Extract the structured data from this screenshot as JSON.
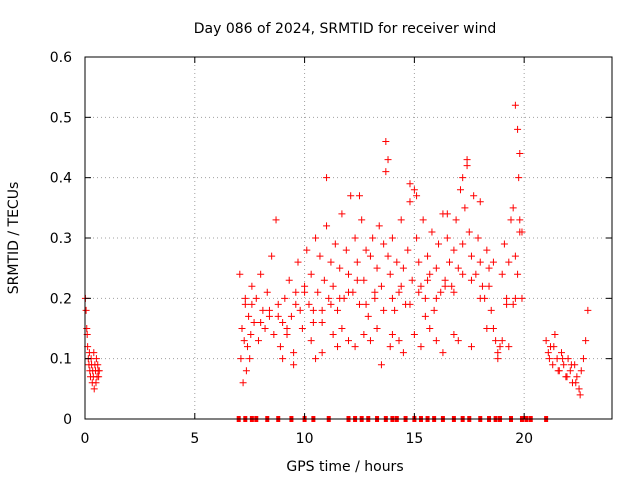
{
  "chart_data": {
    "type": "scatter",
    "title": "Day 086 of 2024, SRMTID for receiver wind",
    "xlabel": "GPS time / hours",
    "ylabel": "SRMTID / TECUs",
    "xlim": [
      0,
      24
    ],
    "ylim": [
      0,
      0.6
    ],
    "xticks": [
      0,
      5,
      10,
      15,
      20
    ],
    "yticks": [
      0,
      0.1,
      0.2,
      0.3,
      0.4,
      0.5,
      0.6
    ],
    "ytick_labels": [
      "0",
      "0.1",
      "0.2",
      "0.3",
      "0.4",
      "0.5",
      "0.6"
    ],
    "grid": true,
    "marker": "+",
    "color": "#ff0000",
    "series": [
      {
        "name": "SRMTID",
        "x": [
          0.02,
          0.05,
          0.08,
          0.1,
          0.12,
          0.15,
          0.18,
          0.2,
          0.22,
          0.25,
          0.28,
          0.3,
          0.33,
          0.35,
          0.38,
          0.4,
          0.42,
          0.45,
          0.48,
          0.5,
          0.52,
          0.55,
          0.58,
          0.6,
          0.62,
          0.65,
          7.05,
          7.1,
          7.15,
          7.2,
          7.25,
          7.3,
          7.35,
          7.4,
          7.45,
          7.5,
          7.55,
          7.6,
          7.7,
          7.8,
          7.9,
          8.0,
          8.1,
          8.2,
          8.3,
          8.4,
          8.5,
          8.6,
          8.7,
          8.8,
          8.9,
          9.0,
          9.1,
          9.2,
          9.3,
          9.4,
          9.5,
          9.6,
          9.7,
          9.8,
          9.9,
          10.0,
          10.1,
          10.2,
          10.3,
          10.4,
          10.5,
          10.6,
          10.7,
          10.8,
          10.9,
          11.0,
          11.1,
          11.2,
          11.3,
          11.4,
          11.5,
          11.6,
          11.7,
          11.8,
          11.9,
          12.0,
          12.1,
          12.2,
          12.3,
          12.4,
          12.5,
          12.6,
          12.7,
          12.8,
          12.9,
          13.0,
          13.1,
          13.2,
          13.3,
          13.4,
          13.5,
          13.6,
          13.7,
          13.8,
          13.9,
          14.0,
          14.1,
          14.2,
          14.3,
          14.4,
          14.5,
          14.6,
          14.7,
          14.8,
          14.9,
          15.0,
          15.1,
          15.2,
          15.3,
          15.4,
          15.5,
          15.6,
          15.7,
          15.8,
          15.9,
          16.0,
          16.1,
          16.2,
          16.3,
          16.4,
          16.5,
          16.6,
          16.7,
          16.8,
          16.9,
          17.0,
          17.1,
          17.2,
          17.3,
          17.4,
          17.5,
          17.6,
          17.7,
          17.8,
          17.9,
          18.0,
          18.1,
          18.2,
          18.3,
          18.4,
          18.5,
          18.6,
          18.7,
          18.8,
          18.9,
          19.0,
          19.1,
          19.2,
          19.3,
          19.4,
          19.5,
          19.6,
          19.7,
          19.8,
          19.9,
          9.0,
          9.5,
          10.3,
          10.5,
          10.8,
          11.0,
          11.3,
          11.5,
          11.7,
          12.0,
          12.3,
          12.5,
          12.7,
          13.0,
          13.3,
          13.5,
          13.7,
          13.8,
          13.9,
          14.0,
          14.3,
          14.5,
          14.8,
          15.0,
          15.1,
          15.3,
          15.5,
          15.7,
          16.0,
          16.3,
          16.5,
          16.8,
          17.0,
          17.2,
          17.4,
          17.6,
          18.0,
          18.3,
          18.6,
          19.0,
          19.3,
          19.6,
          19.7,
          19.8,
          7.3,
          7.6,
          8.0,
          8.4,
          8.8,
          9.2,
          9.6,
          10.0,
          10.4,
          10.8,
          11.2,
          11.6,
          12.0,
          12.4,
          12.8,
          13.2,
          13.6,
          14.0,
          14.4,
          14.8,
          15.2,
          15.6,
          16.0,
          16.4,
          16.8,
          17.2,
          17.6,
          18.0,
          18.4,
          18.8,
          19.2,
          19.6,
          21.0,
          21.1,
          21.2,
          21.3,
          21.4,
          21.5,
          21.6,
          21.7,
          21.8,
          21.9,
          22.0,
          22.1,
          22.2,
          22.3,
          22.4,
          22.5,
          22.6,
          22.7,
          22.8,
          22.9,
          21.15,
          21.35,
          21.55,
          21.75,
          21.95,
          22.15,
          22.35,
          22.55,
          19.5,
          19.75,
          19.8,
          19.9
        ],
        "y": [
          0.2,
          0.18,
          0.15,
          0.14,
          0.12,
          0.1,
          0.09,
          0.11,
          0.08,
          0.07,
          0.1,
          0.09,
          0.06,
          0.08,
          0.07,
          0.11,
          0.05,
          0.09,
          0.08,
          0.06,
          0.1,
          0.07,
          0.09,
          0.08,
          0.07,
          0.08,
          0.24,
          0.1,
          0.15,
          0.06,
          0.13,
          0.19,
          0.08,
          0.12,
          0.17,
          0.1,
          0.14,
          0.22,
          0.16,
          0.2,
          0.13,
          0.24,
          0.18,
          0.15,
          0.21,
          0.17,
          0.27,
          0.14,
          0.33,
          0.19,
          0.12,
          0.16,
          0.2,
          0.14,
          0.23,
          0.17,
          0.11,
          0.21,
          0.26,
          0.18,
          0.15,
          0.22,
          0.28,
          0.19,
          0.24,
          0.16,
          0.3,
          0.21,
          0.27,
          0.18,
          0.23,
          0.32,
          0.2,
          0.26,
          0.22,
          0.29,
          0.18,
          0.25,
          0.34,
          0.2,
          0.28,
          0.24,
          0.37,
          0.21,
          0.3,
          0.26,
          0.19,
          0.33,
          0.23,
          0.28,
          0.17,
          0.27,
          0.3,
          0.2,
          0.25,
          0.32,
          0.22,
          0.29,
          0.41,
          0.27,
          0.24,
          0.3,
          0.18,
          0.26,
          0.21,
          0.33,
          0.25,
          0.19,
          0.28,
          0.36,
          0.23,
          0.38,
          0.3,
          0.26,
          0.22,
          0.33,
          0.2,
          0.27,
          0.24,
          0.31,
          0.18,
          0.25,
          0.29,
          0.21,
          0.34,
          0.23,
          0.3,
          0.26,
          0.22,
          0.28,
          0.33,
          0.25,
          0.38,
          0.29,
          0.35,
          0.42,
          0.31,
          0.27,
          0.37,
          0.24,
          0.3,
          0.26,
          0.22,
          0.2,
          0.28,
          0.25,
          0.18,
          0.15,
          0.13,
          0.11,
          0.12,
          0.24,
          0.29,
          0.2,
          0.26,
          0.33,
          0.19,
          0.27,
          0.24,
          0.31,
          0.2,
          0.1,
          0.09,
          0.13,
          0.1,
          0.11,
          0.4,
          0.14,
          0.12,
          0.15,
          0.13,
          0.12,
          0.37,
          0.14,
          0.13,
          0.15,
          0.09,
          0.46,
          0.43,
          0.12,
          0.14,
          0.13,
          0.11,
          0.39,
          0.14,
          0.37,
          0.12,
          0.17,
          0.15,
          0.13,
          0.11,
          0.34,
          0.14,
          0.13,
          0.4,
          0.43,
          0.12,
          0.36,
          0.15,
          0.26,
          0.13,
          0.12,
          0.52,
          0.48,
          0.44,
          0.2,
          0.19,
          0.16,
          0.18,
          0.17,
          0.15,
          0.19,
          0.21,
          0.18,
          0.16,
          0.19,
          0.2,
          0.21,
          0.23,
          0.19,
          0.21,
          0.18,
          0.2,
          0.22,
          0.19,
          0.21,
          0.23,
          0.2,
          0.22,
          0.21,
          0.24,
          0.23,
          0.2,
          0.22,
          0.1,
          0.19,
          0.2,
          0.13,
          0.11,
          0.12,
          0.09,
          0.14,
          0.1,
          0.08,
          0.11,
          0.09,
          0.07,
          0.1,
          0.08,
          0.06,
          0.09,
          0.07,
          0.05,
          0.08,
          0.1,
          0.13,
          0.18,
          0.1,
          0.12,
          0.08,
          0.1,
          0.07,
          0.09,
          0.06,
          0.04,
          0.35,
          0.4,
          0.33,
          0.31
        ]
      }
    ],
    "zero_markers_x": [
      7.0,
      7.3,
      7.6,
      7.8,
      8.3,
      8.8,
      9.4,
      10.0,
      10.4,
      11.1,
      12.0,
      12.3,
      12.6,
      12.9,
      13.3,
      13.7,
      14.0,
      14.2,
      14.6,
      15.0,
      15.3,
      15.6,
      15.9,
      16.3,
      16.8,
      17.2,
      17.5,
      18.0,
      18.4,
      18.7,
      18.9,
      19.4,
      19.9,
      20.1,
      20.3,
      21.0
    ]
  }
}
